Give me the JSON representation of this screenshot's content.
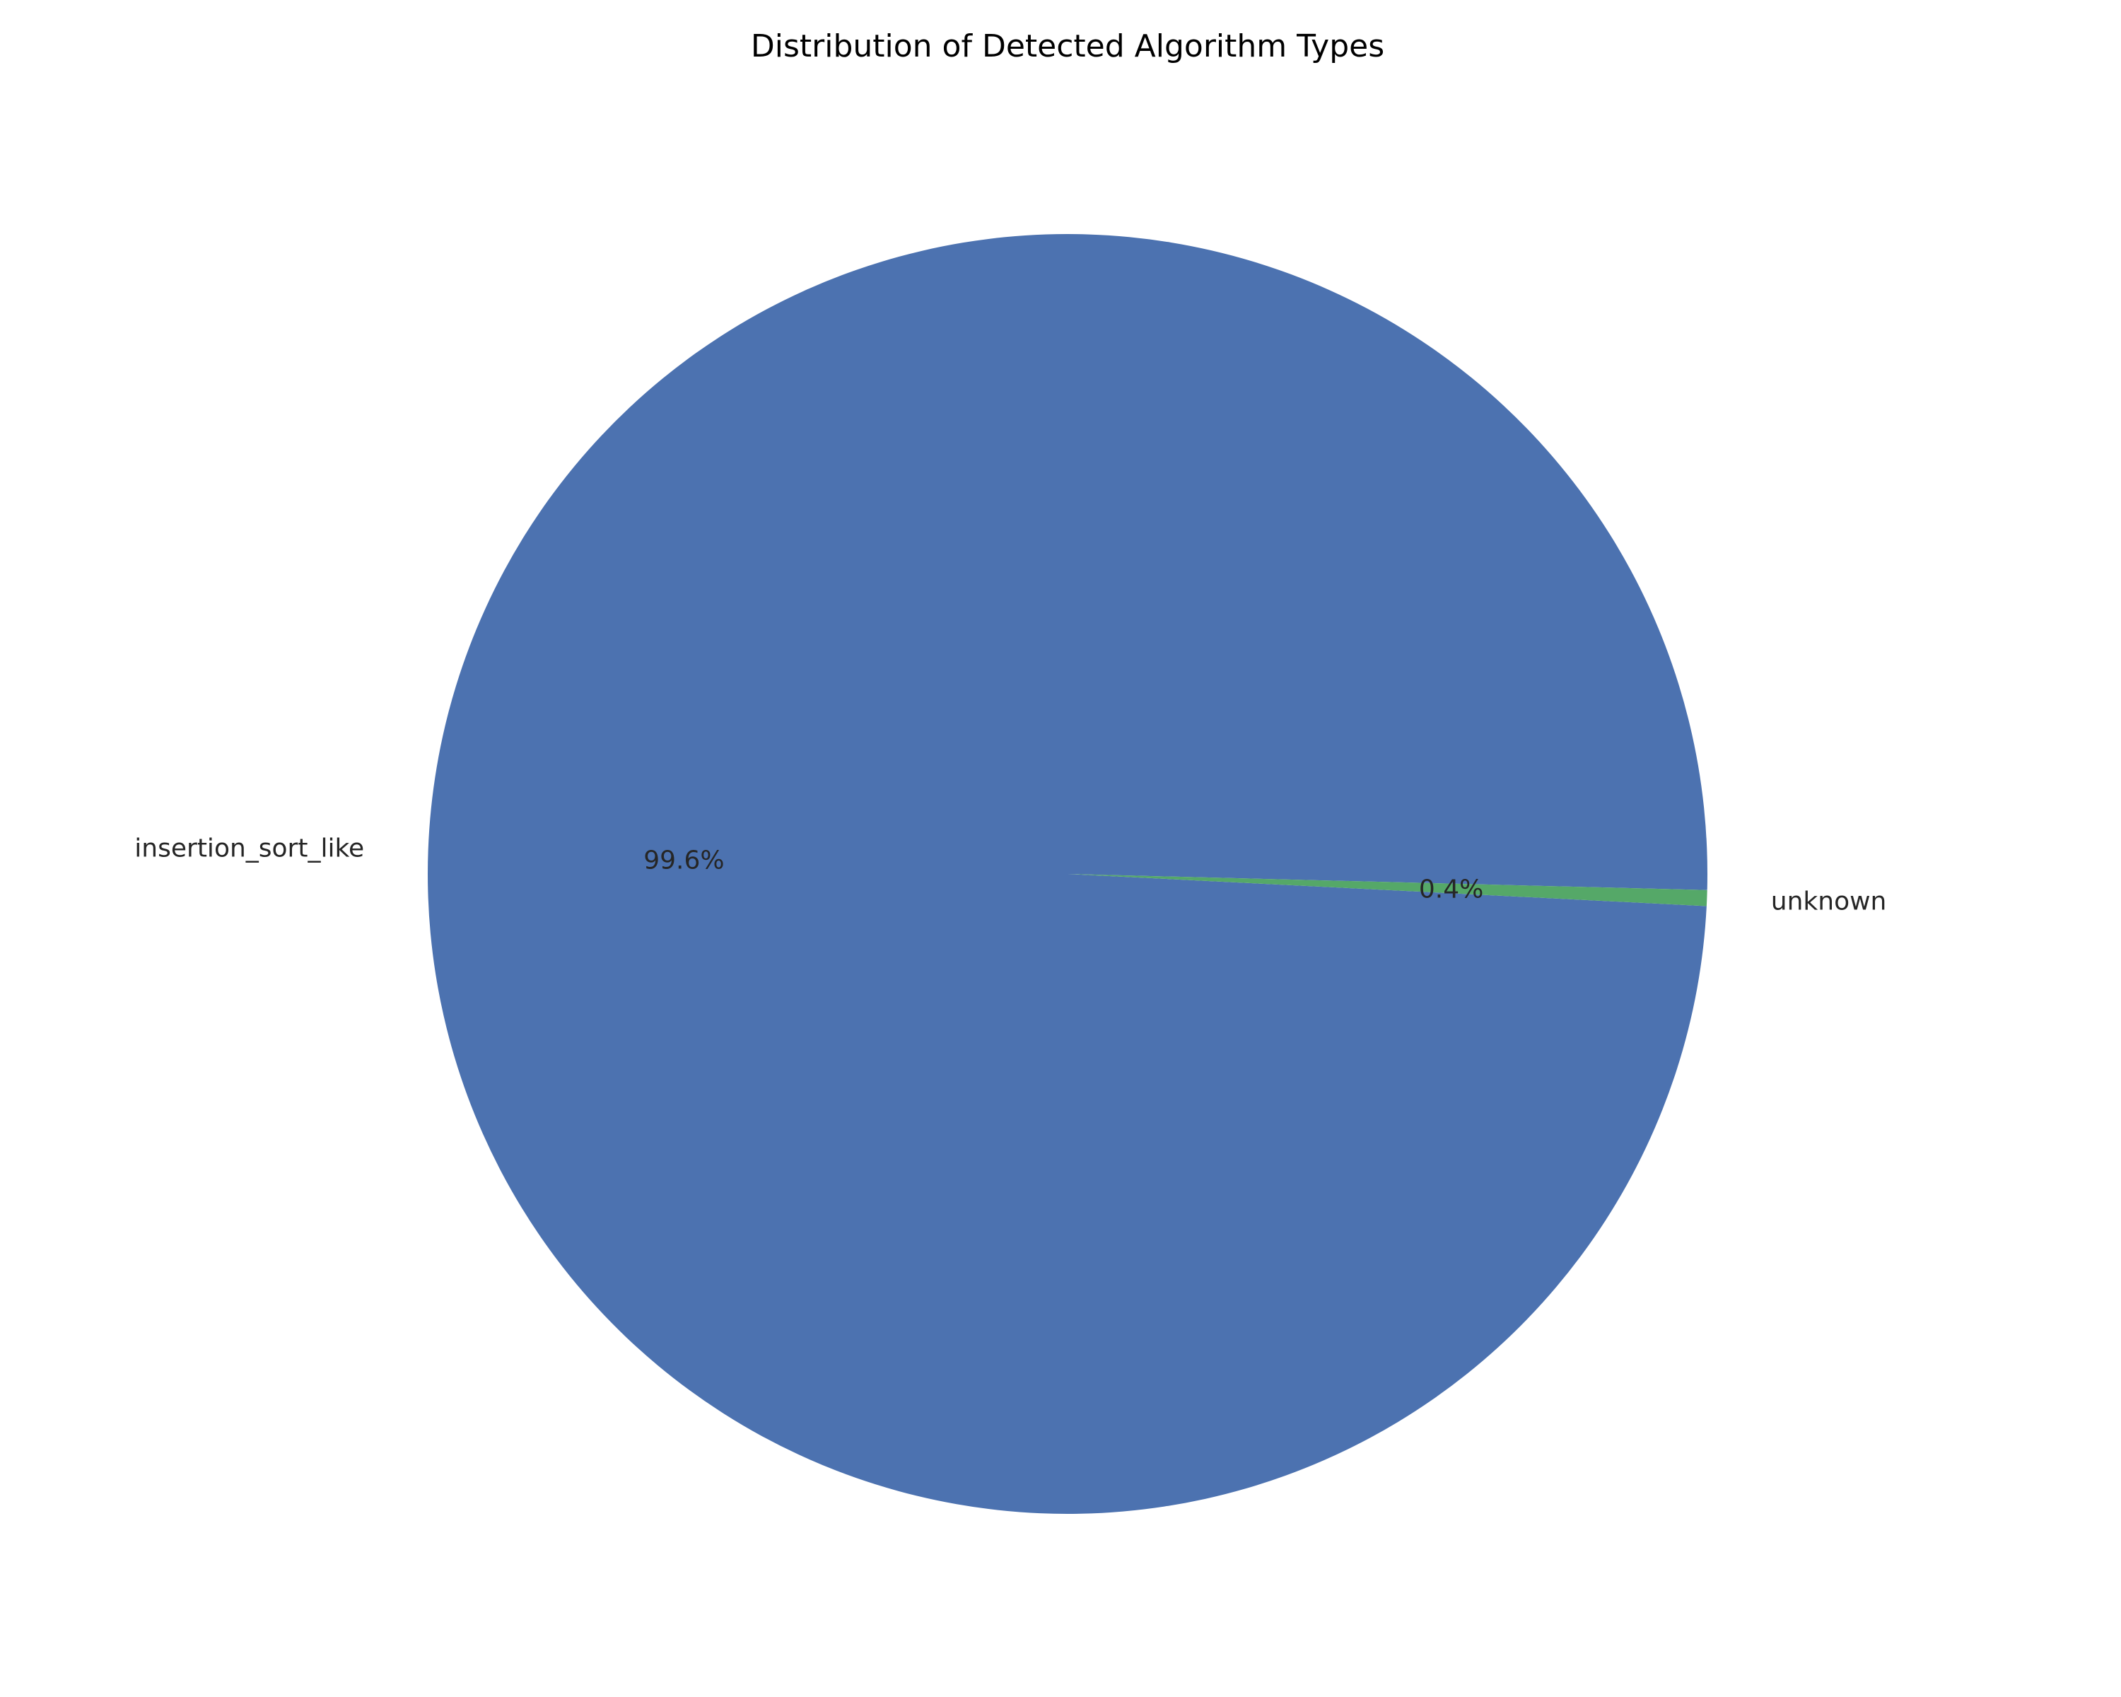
{
  "chart_data": {
    "type": "pie",
    "title": "Distribution of Detected Algorithm Types",
    "slices": [
      {
        "label": "insertion_sort_like",
        "value": 99.6,
        "pct_label": "99.6%",
        "color": "#4c72b0"
      },
      {
        "label": "unknown",
        "value": 0.4,
        "pct_label": "0.4%",
        "color": "#55a868"
      }
    ],
    "legend": "none"
  }
}
